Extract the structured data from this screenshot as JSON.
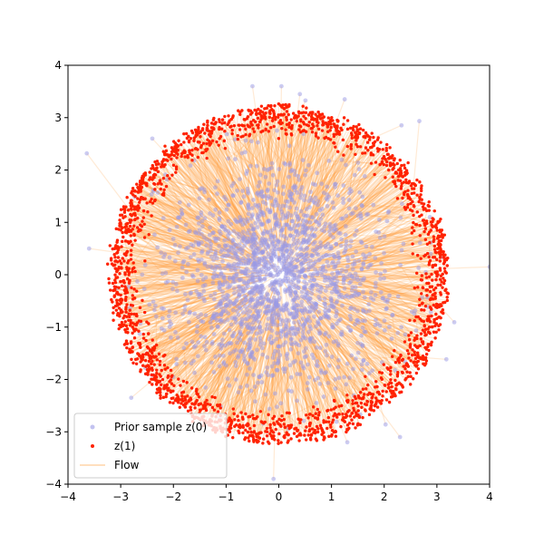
{
  "chart_data": {
    "type": "scatter",
    "title": "",
    "xlabel": "",
    "ylabel": "",
    "xlim": [
      -4,
      4
    ],
    "ylim": [
      -4,
      4
    ],
    "x_ticks": [
      "−4",
      "−3",
      "−2",
      "−1",
      "0",
      "1",
      "2",
      "3",
      "4"
    ],
    "y_ticks": [
      "−4",
      "−3",
      "−2",
      "−1",
      "0",
      "1",
      "2",
      "3",
      "4"
    ],
    "grid": false,
    "legend_position": "lower-left",
    "series": [
      {
        "name": "Prior sample z(0)",
        "marker": "circle",
        "color": "#9a9ae6",
        "distribution": "standard-normal",
        "std": 1.0,
        "count": 2000,
        "sample_points": [
          [
            -3.6,
            0.5
          ],
          [
            -0.5,
            3.6
          ],
          [
            0.05,
            3.6
          ],
          [
            4.0,
            0.15
          ],
          [
            -0.1,
            -3.9
          ],
          [
            1.25,
            3.35
          ],
          [
            0.4,
            3.45
          ],
          [
            -2.4,
            2.6
          ],
          [
            2.3,
            -3.1
          ],
          [
            -2.8,
            -2.35
          ],
          [
            1.3,
            -3.2
          ]
        ]
      },
      {
        "name": "z(1)",
        "marker": "circle",
        "color": "#ff2200",
        "shape": "disc",
        "radius_range": [
          2.6,
          3.2
        ],
        "count": 2000
      },
      {
        "name": "Flow",
        "marker": "line",
        "color": "#ffa040",
        "description": "segments from z(0) to z(1)"
      }
    ]
  }
}
